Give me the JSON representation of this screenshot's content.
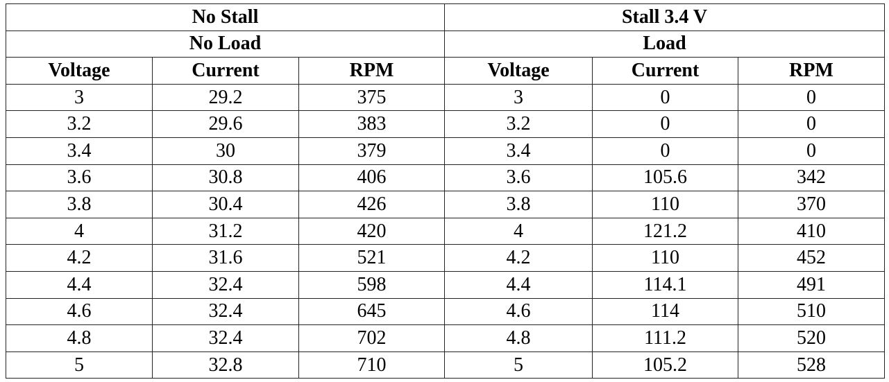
{
  "table": {
    "groups": [
      {
        "title": "No Stall",
        "subtitle": "No Load"
      },
      {
        "title": "Stall 3.4 V",
        "subtitle": "Load"
      }
    ],
    "columns": [
      "Voltage",
      "Current",
      "RPM",
      "Voltage",
      "Current",
      "RPM"
    ],
    "rows": [
      [
        3,
        29.2,
        375,
        3,
        0,
        0
      ],
      [
        3.2,
        29.6,
        383,
        3.2,
        0,
        0
      ],
      [
        3.4,
        30,
        379,
        3.4,
        0,
        0
      ],
      [
        3.6,
        30.8,
        406,
        3.6,
        105.6,
        342
      ],
      [
        3.8,
        30.4,
        426,
        3.8,
        110,
        370
      ],
      [
        4,
        31.2,
        420,
        4,
        121.2,
        410
      ],
      [
        4.2,
        31.6,
        521,
        4.2,
        110,
        452
      ],
      [
        4.4,
        32.4,
        598,
        4.4,
        114.1,
        491
      ],
      [
        4.6,
        32.4,
        645,
        4.6,
        114,
        510
      ],
      [
        4.8,
        32.4,
        702,
        4.8,
        111.2,
        520
      ],
      [
        5,
        32.8,
        710,
        5,
        105.2,
        528
      ]
    ]
  }
}
